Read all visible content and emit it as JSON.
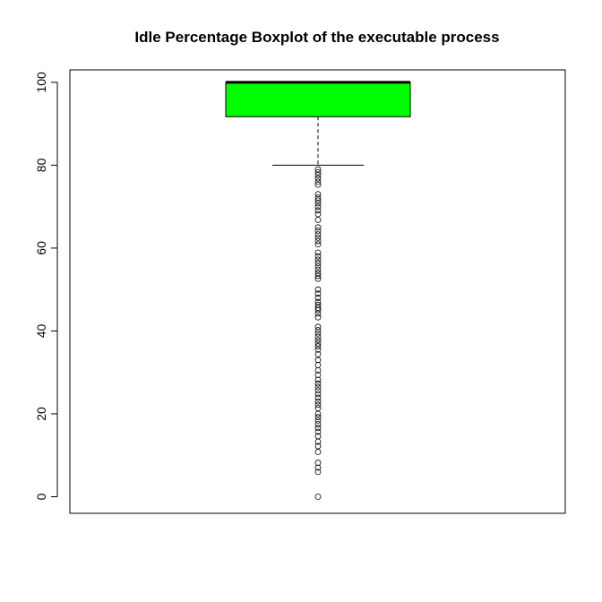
{
  "chart_data": {
    "type": "boxplot",
    "title": "Idle Percentage Boxplot of the executable process",
    "xlabel": "",
    "ylabel": "",
    "ylim": [
      -4,
      103
    ],
    "yticks": [
      "0",
      "20",
      "40",
      "60",
      "80",
      "100"
    ],
    "grid": false,
    "box": {
      "min_whisker": 80,
      "q1": 91.7,
      "median": 100,
      "q3": 100,
      "max_whisker": 100,
      "fill": "#00ff00"
    },
    "outliers": [
      79,
      78.3,
      77.6,
      76.8,
      76,
      75.3,
      73,
      72.2,
      71.5,
      70.8,
      70,
      69.1,
      68.2,
      66.8,
      65,
      64.2,
      63.3,
      62.5,
      61.7,
      60.9,
      58.9,
      58,
      57.2,
      56.4,
      55.6,
      54.8,
      54,
      53.3,
      52.6,
      50,
      49,
      48,
      47,
      46.3,
      45.6,
      45,
      44.2,
      43.3,
      41,
      40.2,
      39.4,
      38.6,
      37.8,
      37,
      36.3,
      35.5,
      34.4,
      33,
      31.8,
      30.5,
      29.4,
      28.2,
      27.3,
      26.5,
      25.7,
      24.8,
      23.9,
      23,
      22.2,
      21.4,
      20,
      19.2,
      18.4,
      17.5,
      16.6,
      15.7,
      14.6,
      13.3,
      12.2,
      10.8,
      8.2,
      7,
      6,
      0
    ]
  }
}
